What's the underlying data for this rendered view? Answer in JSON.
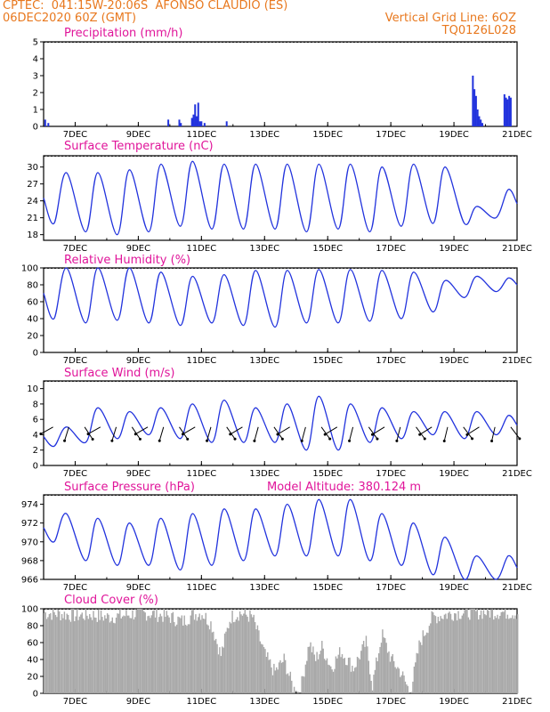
{
  "header": {
    "line1": "CPTEC:  041:15W-20:06S  AFONSO CLAUDIO (ES)",
    "line2": "06DEC2020 60Z (GMT)",
    "right1": "Vertical Grid Line: 6OZ",
    "right2": "TQ0126L028"
  },
  "x_ticks": [
    "7DEC",
    "9DEC",
    "11DEC",
    "13DEC",
    "15DEC",
    "17DEC",
    "19DEC",
    "21DEC"
  ],
  "colors": {
    "line": "#2233dd",
    "cloud": "#a8a8a8",
    "title": "#e0159a",
    "header": "#e8781e"
  },
  "chart_data": [
    {
      "type": "bar",
      "title": "Precipitation (mm/h)",
      "ylim": [
        0,
        5
      ],
      "yticks": [
        "5",
        "4",
        "3",
        "2",
        "1",
        "0"
      ],
      "x_range_days": [
        6.0,
        21.0
      ],
      "points": [
        [
          6.05,
          0.4
        ],
        [
          6.15,
          0.2
        ],
        [
          9.95,
          0.4
        ],
        [
          10.3,
          0.4
        ],
        [
          10.35,
          0.2
        ],
        [
          10.7,
          0.5
        ],
        [
          10.75,
          0.7
        ],
        [
          10.8,
          1.3
        ],
        [
          10.85,
          0.6
        ],
        [
          10.9,
          1.4
        ],
        [
          10.95,
          0.3
        ],
        [
          11.0,
          0.3
        ],
        [
          11.1,
          0.2
        ],
        [
          11.8,
          0.3
        ],
        [
          19.6,
          3.0
        ],
        [
          19.65,
          2.2
        ],
        [
          19.7,
          1.8
        ],
        [
          19.75,
          1.0
        ],
        [
          19.8,
          0.6
        ],
        [
          19.85,
          0.4
        ],
        [
          19.9,
          0.2
        ],
        [
          20.6,
          1.9
        ],
        [
          20.65,
          1.7
        ],
        [
          20.7,
          1.6
        ],
        [
          20.75,
          1.8
        ],
        [
          20.8,
          1.7
        ]
      ]
    },
    {
      "type": "line",
      "title": "Surface Temperature (nC)",
      "ylim": [
        17,
        32
      ],
      "yticks": [
        "30",
        "27",
        "24",
        "21",
        "18"
      ],
      "x_range_days": [
        6.0,
        21.0
      ],
      "min": [
        20,
        18.5,
        18,
        18.5,
        19.5,
        19,
        19,
        19,
        18.5,
        19,
        18.5,
        19.5,
        20,
        20,
        21
      ],
      "max": [
        29,
        29,
        29.5,
        30.5,
        31,
        30.5,
        30.5,
        30.5,
        30.5,
        30.5,
        30,
        30.5,
        30,
        23,
        26
      ]
    },
    {
      "type": "line",
      "title": "Relative Humidity (%)",
      "ylim": [
        0,
        100
      ],
      "yticks": [
        "100",
        "80",
        "60",
        "40",
        "20",
        "0"
      ],
      "x_range_days": [
        6.0,
        21.0
      ],
      "max": [
        100,
        100,
        100,
        95,
        90,
        92,
        97,
        97,
        98,
        98,
        97,
        95,
        85,
        90,
        88
      ],
      "min": [
        40,
        35,
        38,
        35,
        32,
        35,
        32,
        30,
        35,
        35,
        37,
        40,
        48,
        65,
        72
      ]
    },
    {
      "type": "line",
      "title": "Surface Wind (m/s)",
      "ylim": [
        0,
        11
      ],
      "yticks": [
        "10",
        "8",
        "6",
        "4",
        "2",
        "0"
      ],
      "x_range_days": [
        6.0,
        21.0
      ],
      "min": [
        2.5,
        3,
        3.5,
        4,
        3.5,
        3,
        3,
        3,
        2,
        2,
        3,
        3.5,
        4,
        3.5,
        4
      ],
      "max": [
        5,
        7.5,
        7,
        7.5,
        8,
        8.5,
        7.5,
        8,
        9,
        8,
        7.5,
        7,
        7,
        7,
        6.5
      ]
    },
    {
      "type": "line",
      "title": "Surface Pressure (hPa)",
      "annotation": "Model Altitude: 380.124 m",
      "ylim": [
        966,
        975
      ],
      "yticks": [
        "974",
        "972",
        "970",
        "968",
        "966"
      ],
      "x_range_days": [
        6.0,
        21.0
      ],
      "max": [
        973,
        972.5,
        972,
        972.5,
        973,
        973.5,
        973.5,
        974,
        974.5,
        974.5,
        973,
        972,
        970.5,
        968.5,
        968.5
      ],
      "min": [
        970,
        968,
        967.5,
        967.5,
        967,
        967.5,
        968,
        968.5,
        968.5,
        968.5,
        968,
        967.5,
        966.5,
        966,
        966
      ]
    },
    {
      "type": "bar",
      "title": "Cloud Cover (%)",
      "ylim": [
        0,
        100
      ],
      "yticks": [
        "100",
        "80",
        "60",
        "40",
        "20",
        "0"
      ],
      "x_range_days": [
        6.0,
        21.0
      ],
      "profile": [
        [
          6.0,
          95
        ],
        [
          6.5,
          94
        ],
        [
          7.0,
          92
        ],
        [
          7.5,
          93
        ],
        [
          8.0,
          90
        ],
        [
          8.5,
          92
        ],
        [
          9.0,
          95
        ],
        [
          9.5,
          94
        ],
        [
          10.0,
          90
        ],
        [
          10.4,
          85
        ],
        [
          10.7,
          93
        ],
        [
          11.0,
          95
        ],
        [
          11.3,
          82
        ],
        [
          11.6,
          45
        ],
        [
          11.9,
          90
        ],
        [
          12.2,
          95
        ],
        [
          12.6,
          90
        ],
        [
          13.0,
          45
        ],
        [
          13.3,
          25
        ],
        [
          13.6,
          40
        ],
        [
          13.9,
          5
        ],
        [
          14.1,
          0
        ],
        [
          14.4,
          60
        ],
        [
          14.6,
          40
        ],
        [
          14.8,
          55
        ],
        [
          15.1,
          30
        ],
        [
          15.4,
          50
        ],
        [
          15.8,
          30
        ],
        [
          16.2,
          60
        ],
        [
          16.4,
          10
        ],
        [
          16.7,
          70
        ],
        [
          17.0,
          40
        ],
        [
          17.3,
          25
        ],
        [
          17.6,
          0
        ],
        [
          17.9,
          60
        ],
        [
          18.3,
          90
        ],
        [
          18.6,
          92
        ],
        [
          19.0,
          95
        ],
        [
          19.5,
          96
        ],
        [
          20.0,
          96
        ],
        [
          20.5,
          96
        ],
        [
          21.0,
          95
        ]
      ]
    }
  ]
}
